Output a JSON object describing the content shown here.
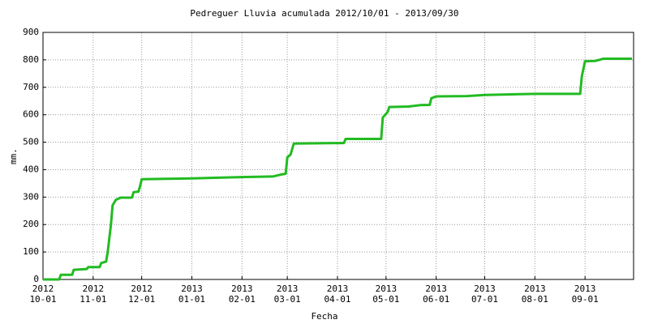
{
  "chart_data": {
    "type": "line",
    "title": "Pedreguer Lluvia acumulada 2012/10/01 - 2013/09/30",
    "x_label": "Fecha",
    "y_label": "mm.",
    "x": [
      "2012-10-01",
      "2012-10-11",
      "2012-10-12",
      "2012-10-19",
      "2012-10-20",
      "2012-10-28",
      "2012-10-29",
      "2012-11-05",
      "2012-11-06",
      "2012-11-09",
      "2012-11-10",
      "2012-11-12",
      "2012-11-13",
      "2012-11-15",
      "2012-11-18",
      "2012-11-25",
      "2012-11-26",
      "2012-11-29",
      "2012-11-30",
      "2012-12-01",
      "2013-01-01",
      "2013-02-01",
      "2013-02-20",
      "2013-02-25",
      "2013-02-28",
      "2013-03-01",
      "2013-03-03",
      "2013-03-05",
      "2013-04-01",
      "2013-04-05",
      "2013-04-06",
      "2013-04-28",
      "2013-04-29",
      "2013-05-02",
      "2013-05-03",
      "2013-05-15",
      "2013-05-22",
      "2013-05-28",
      "2013-05-29",
      "2013-06-01",
      "2013-06-20",
      "2013-07-01",
      "2013-07-15",
      "2013-08-01",
      "2013-08-29",
      "2013-08-30",
      "2013-09-01",
      "2013-09-07",
      "2013-09-10",
      "2013-09-12",
      "2013-09-30"
    ],
    "series": [
      {
        "name": "Lluvia acumulada",
        "color": "#22bb22",
        "values": [
          0,
          0,
          17,
          17,
          35,
          38,
          45,
          45,
          60,
          65,
          100,
          200,
          270,
          290,
          298,
          298,
          318,
          320,
          340,
          365,
          368,
          373,
          375,
          382,
          385,
          445,
          455,
          495,
          497,
          497,
          512,
          512,
          590,
          610,
          628,
          630,
          635,
          636,
          660,
          667,
          668,
          672,
          674,
          676,
          676,
          740,
          795,
          796,
          800,
          804,
          804
        ]
      }
    ],
    "xlim": [
      "2012-10-01",
      "2013-10-01"
    ],
    "xticks": [
      {
        "value": "2012-10-01",
        "label": [
          "2012",
          "10-01"
        ]
      },
      {
        "value": "2012-11-01",
        "label": [
          "2012",
          "11-01"
        ]
      },
      {
        "value": "2012-12-01",
        "label": [
          "2012",
          "12-01"
        ]
      },
      {
        "value": "2013-01-01",
        "label": [
          "2013",
          "01-01"
        ]
      },
      {
        "value": "2013-02-01",
        "label": [
          "2013",
          "02-01"
        ]
      },
      {
        "value": "2013-03-01",
        "label": [
          "2013",
          "03-01"
        ]
      },
      {
        "value": "2013-04-01",
        "label": [
          "2013",
          "04-01"
        ]
      },
      {
        "value": "2013-05-01",
        "label": [
          "2013",
          "05-01"
        ]
      },
      {
        "value": "2013-06-01",
        "label": [
          "2013",
          "06-01"
        ]
      },
      {
        "value": "2013-07-01",
        "label": [
          "2013",
          "07-01"
        ]
      },
      {
        "value": "2013-08-01",
        "label": [
          "2013",
          "08-01"
        ]
      },
      {
        "value": "2013-09-01",
        "label": [
          "2013",
          "09-01"
        ]
      }
    ],
    "ylim": [
      0,
      900
    ],
    "yticks": [
      0,
      100,
      200,
      300,
      400,
      500,
      600,
      700,
      800,
      900
    ],
    "grid": true
  }
}
